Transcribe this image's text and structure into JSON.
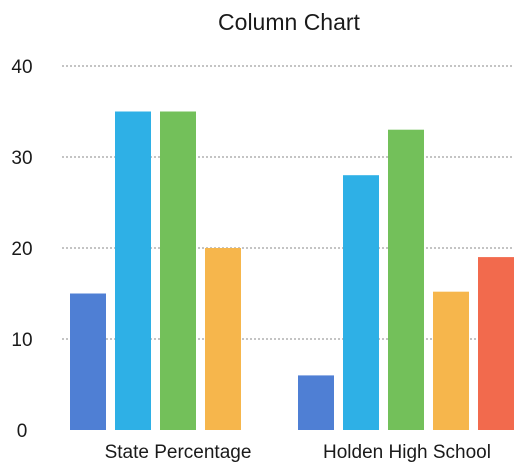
{
  "chart_data": {
    "type": "bar",
    "title": "Column Chart",
    "xlabel": "",
    "ylabel": "",
    "ylim": [
      0,
      40
    ],
    "yticks": [
      0,
      10,
      20,
      30,
      40
    ],
    "grid": true,
    "categories": [
      "State Percentage",
      "Holden High School"
    ],
    "series": [
      {
        "color": "#4f7fd4",
        "values": [
          15,
          6
        ]
      },
      {
        "color": "#2eb0e6",
        "values": [
          35,
          28
        ]
      },
      {
        "color": "#73c05a",
        "values": [
          35,
          33
        ]
      },
      {
        "color": "#f6b64c",
        "values": [
          20,
          15.2
        ]
      },
      {
        "color": "#f26a4d",
        "values": [
          null,
          19
        ]
      }
    ]
  }
}
